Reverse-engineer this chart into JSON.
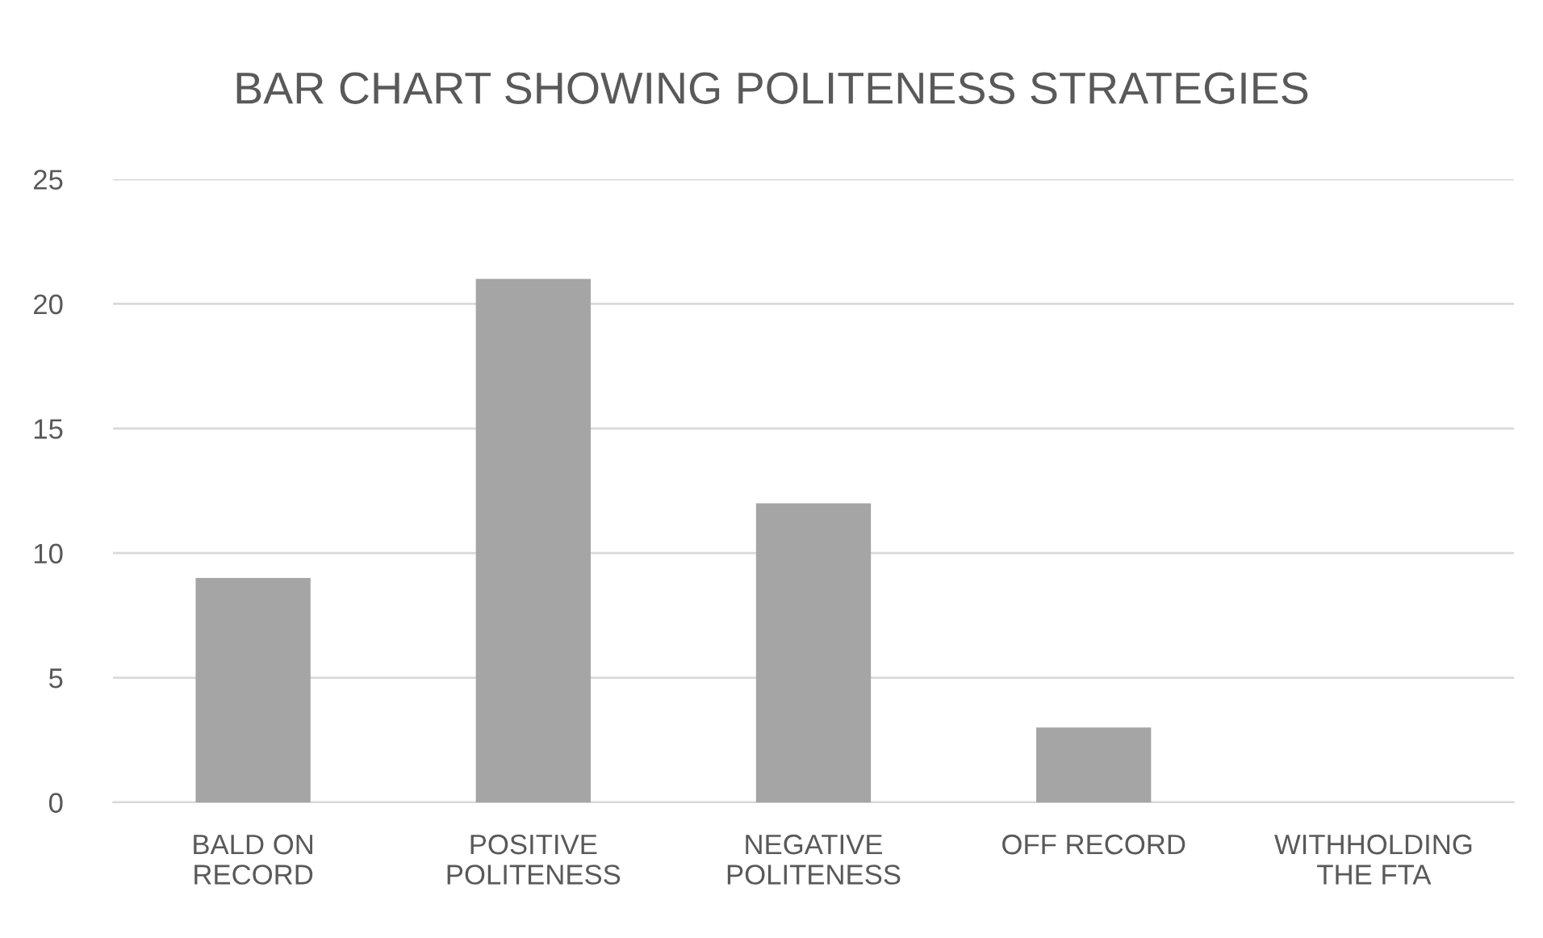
{
  "chart_data": {
    "type": "bar",
    "title": "BAR CHART SHOWING POLITENESS STRATEGIES",
    "categories": [
      "BALD ON\nRECORD",
      "POSITIVE\nPOLITENESS",
      "NEGATIVE\nPOLITENESS",
      "OFF RECORD",
      "WITHHOLDING\nTHE FTA"
    ],
    "values": [
      9,
      21,
      12,
      3,
      0
    ],
    "color": "#a5a5a5",
    "ylim": [
      0,
      25
    ],
    "yticks": [
      0,
      5,
      10,
      15,
      20,
      25
    ],
    "grid": "y",
    "legend": false
  }
}
